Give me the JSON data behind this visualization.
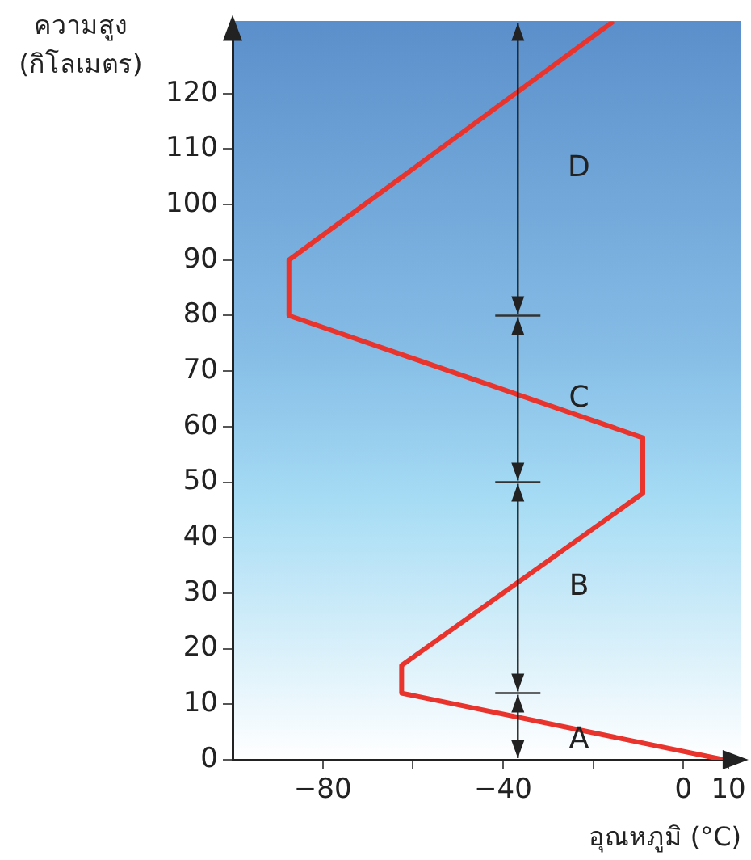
{
  "chart_data": {
    "type": "line",
    "xlabel": "อุณหภูมิ (°C)",
    "ylabel": "ความสูง (กิโลเมตร)",
    "x": [
      9,
      -62.5,
      -62.5,
      -9,
      -9,
      -87.5,
      -87.5,
      -15.5
    ],
    "series": [
      {
        "color": "#e8342c",
        "values": [
          0,
          12,
          17,
          48,
          58,
          80,
          90,
          133
        ]
      }
    ],
    "xlim": [
      -100,
      13
    ],
    "xticks": [
      {
        "value": -80,
        "label": "−80"
      },
      {
        "value": -60,
        "label": null
      },
      {
        "value": -40,
        "label": "−40"
      },
      {
        "value": -20,
        "label": null
      },
      0,
      10
    ],
    "ylim": [
      0,
      133
    ],
    "yticks": [
      0,
      10,
      20,
      30,
      40,
      50,
      60,
      70,
      80,
      90,
      100,
      110,
      120
    ],
    "ref_lines": [
      {
        "axis": "y",
        "value": 12
      },
      {
        "axis": "y",
        "value": 50
      },
      {
        "axis": "y",
        "value": 80
      }
    ],
    "annotations": [
      "A",
      "B",
      "C",
      "D"
    ],
    "grid": false,
    "legend": false,
    "marker": "none",
    "line_style": "solid"
  }
}
